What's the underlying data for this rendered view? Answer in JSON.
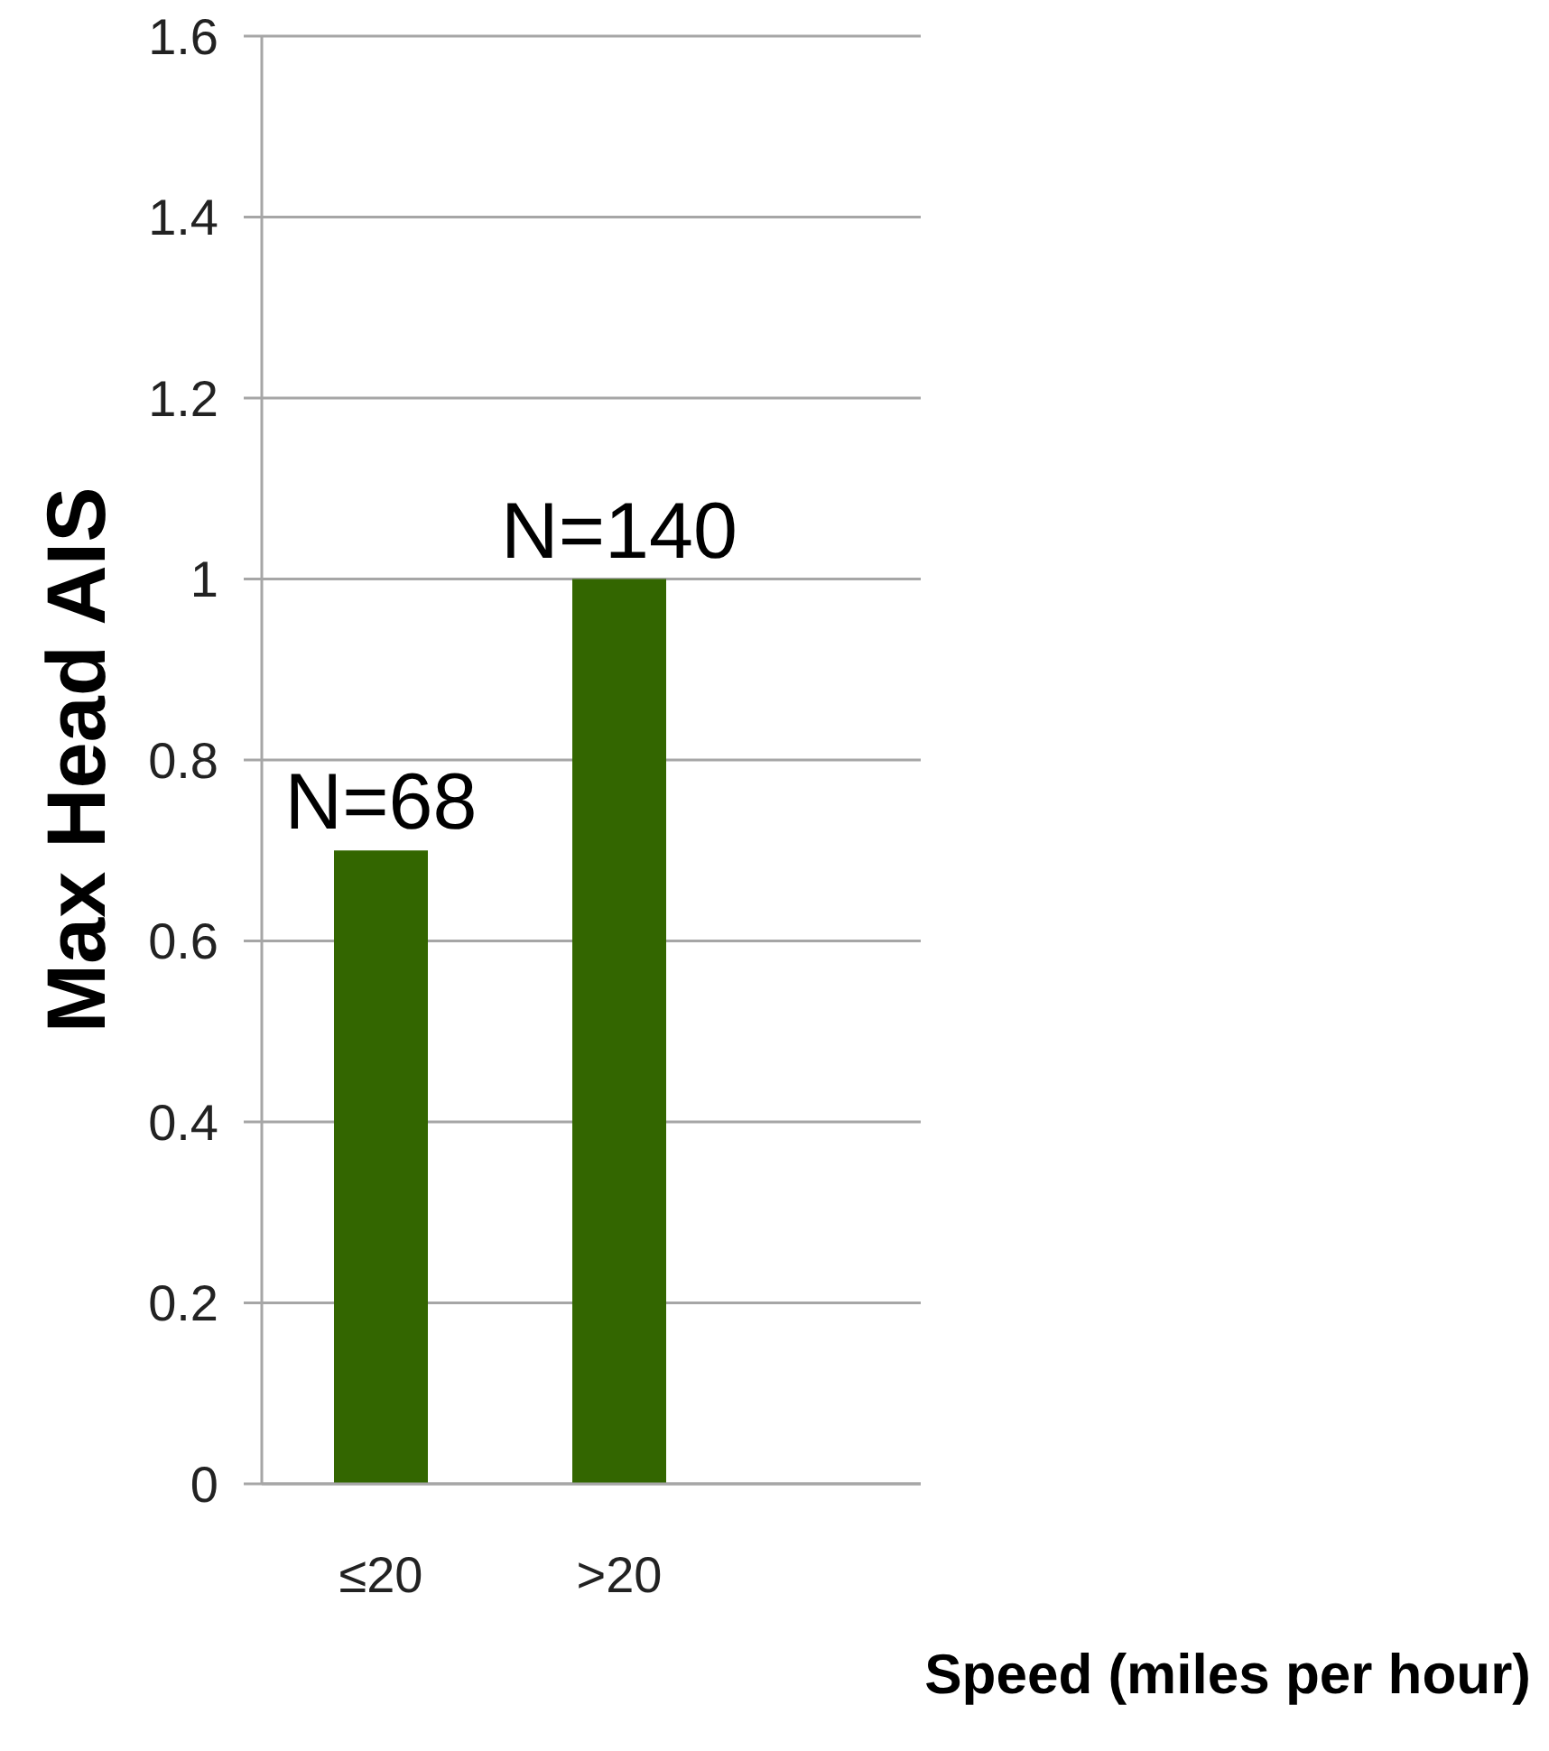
{
  "chart_data": {
    "type": "bar",
    "xlabel": "Speed (miles per hour)",
    "ylabel": "Max Head AIS",
    "categories": [
      "≤20",
      ">20"
    ],
    "values": [
      0.7,
      1
    ],
    "color": "#336600",
    "ylim": [
      0,
      1.6
    ],
    "yticks": [
      0,
      0.2,
      0.4,
      0.6,
      0.8,
      1,
      1.2,
      1.4,
      1.6
    ],
    "grid": "y",
    "annotations": [
      {
        "text": "N=68",
        "x": "≤20",
        "y": 0.7
      },
      {
        "text": "N=140",
        "x": ">20",
        "y": 1
      }
    ]
  }
}
